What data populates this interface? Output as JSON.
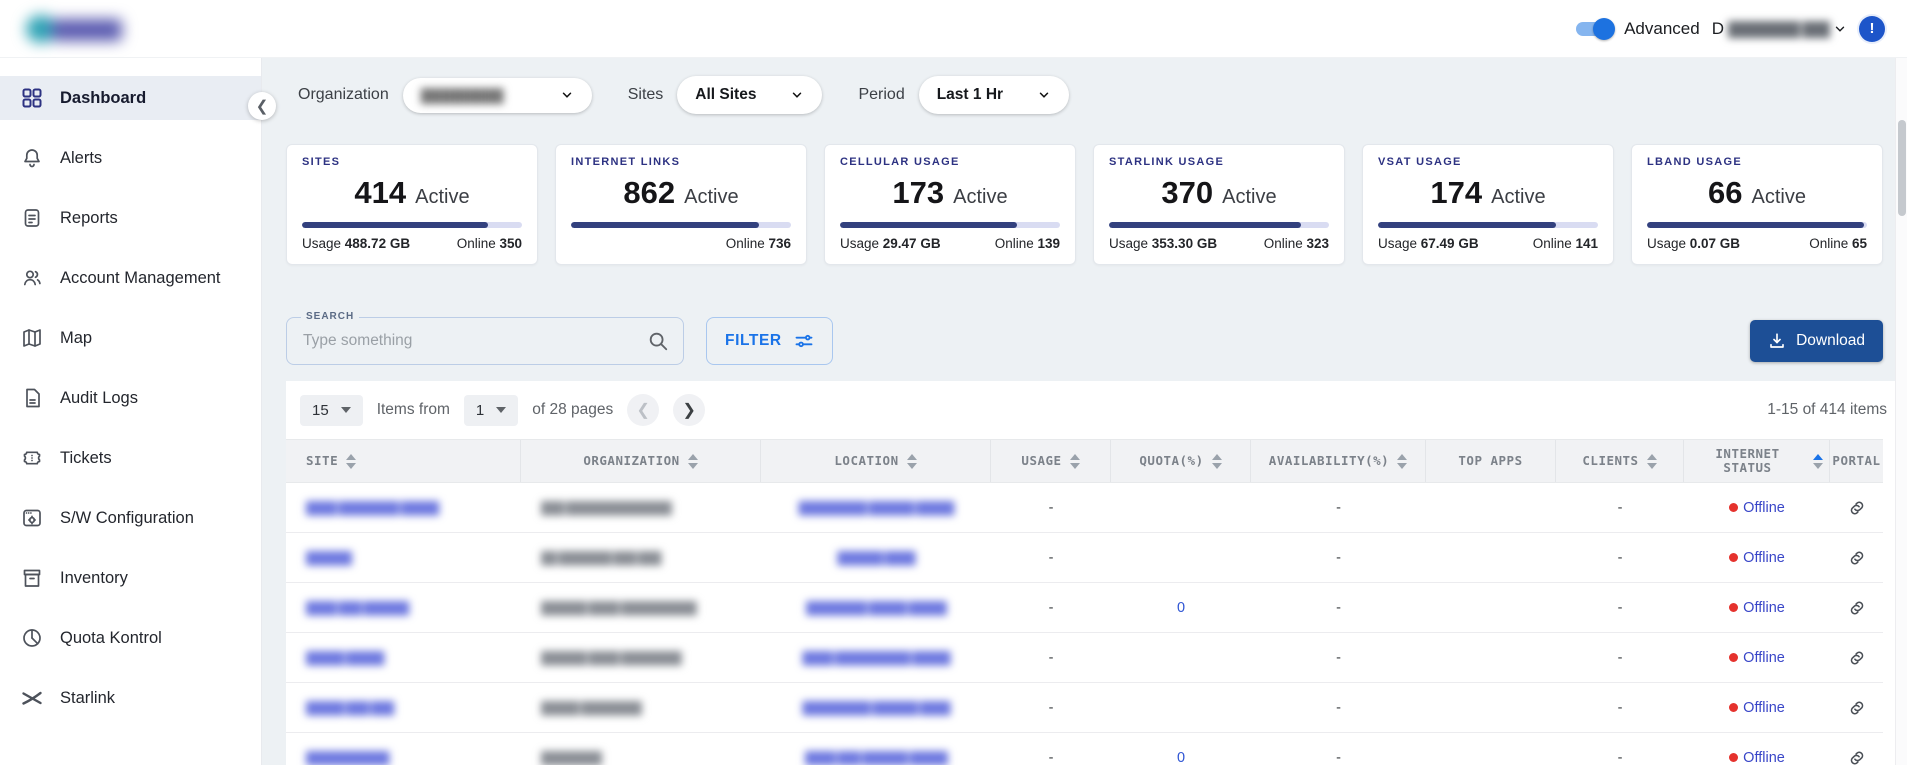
{
  "header": {
    "advanced_label": "Advanced",
    "user_prefix": "D",
    "user_name_redacted": "████████ ███",
    "alert_badge": "!"
  },
  "sidebar": {
    "items": [
      {
        "label": "Dashboard",
        "icon": "dashboard-grid-icon",
        "active": true
      },
      {
        "label": "Alerts",
        "icon": "bell-icon",
        "active": false
      },
      {
        "label": "Reports",
        "icon": "report-icon",
        "active": false
      },
      {
        "label": "Account Management",
        "icon": "users-icon",
        "active": false
      },
      {
        "label": "Map",
        "icon": "map-icon",
        "active": false
      },
      {
        "label": "Audit Logs",
        "icon": "document-icon",
        "active": false
      },
      {
        "label": "Tickets",
        "icon": "ticket-icon",
        "active": false
      },
      {
        "label": "S/W Configuration",
        "icon": "window-gear-icon",
        "active": false
      },
      {
        "label": "Inventory",
        "icon": "box-icon",
        "active": false
      },
      {
        "label": "Quota Kontrol",
        "icon": "pie-chart-icon",
        "active": false
      },
      {
        "label": "Starlink",
        "icon": "starlink-icon",
        "active": false
      }
    ]
  },
  "filters": {
    "organization_label": "Organization",
    "organization_value_redacted": "█████████",
    "sites_label": "Sites",
    "sites_value": "All Sites",
    "period_label": "Period",
    "period_value": "Last 1 Hr"
  },
  "cards": [
    {
      "label": "SITES",
      "value": "414",
      "active_label": "Active",
      "usage_label": "Usage",
      "usage": "488.72 GB",
      "online_label": "Online",
      "online": "350",
      "progress_pct": 84.5
    },
    {
      "label": "INTERNET LINKS",
      "value": "862",
      "active_label": "Active",
      "usage_label": "",
      "usage": "",
      "online_label": "Online",
      "online": "736",
      "progress_pct": 85.4
    },
    {
      "label": "CELLULAR USAGE",
      "value": "173",
      "active_label": "Active",
      "usage_label": "Usage",
      "usage": "29.47 GB",
      "online_label": "Online",
      "online": "139",
      "progress_pct": 80.3
    },
    {
      "label": "STARLINK USAGE",
      "value": "370",
      "active_label": "Active",
      "usage_label": "Usage",
      "usage": "353.30 GB",
      "online_label": "Online",
      "online": "323",
      "progress_pct": 87.3
    },
    {
      "label": "VSAT USAGE",
      "value": "174",
      "active_label": "Active",
      "usage_label": "Usage",
      "usage": "67.49 GB",
      "online_label": "Online",
      "online": "141",
      "progress_pct": 81.0
    },
    {
      "label": "LBAND USAGE",
      "value": "66",
      "active_label": "Active",
      "usage_label": "Usage",
      "usage": "0.07 GB",
      "online_label": "Online",
      "online": "65",
      "progress_pct": 98.5
    }
  ],
  "toolbar": {
    "search_label": "SEARCH",
    "search_placeholder": "Type something",
    "filter_label": "FILTER",
    "download_label": "Download"
  },
  "pagination": {
    "page_size": "15",
    "items_from_label": "Items from",
    "current_page": "1",
    "pages_label": "of 28 pages",
    "range_label": "1-15 of 414 items"
  },
  "table": {
    "columns": [
      {
        "label": "SITE",
        "sort": "both",
        "align": "left"
      },
      {
        "label": "ORGANIZATION",
        "sort": "both",
        "align": "center"
      },
      {
        "label": "LOCATION",
        "sort": "both",
        "align": "center"
      },
      {
        "label": "USAGE",
        "sort": "both",
        "align": "center"
      },
      {
        "label": "QUOTA(%)",
        "sort": "both",
        "align": "center"
      },
      {
        "label": "AVAILABILITY(%)",
        "sort": "both",
        "align": "center"
      },
      {
        "label": "TOP APPS",
        "sort": "none",
        "align": "center"
      },
      {
        "label": "CLIENTS",
        "sort": "both",
        "align": "center"
      },
      {
        "label": "INTERNET STATUS",
        "sort": "asc",
        "align": "center"
      },
      {
        "label": "PORTAL",
        "sort": "none",
        "align": "center"
      }
    ],
    "rows": [
      {
        "site_redacted": "████ ████████ █████",
        "organization_redacted": "███ ██████████████",
        "location_redacted": "█████████ ██████ █████",
        "usage": "-",
        "quota": "",
        "availability": "-",
        "top_apps": "",
        "clients": "-",
        "internet_status": "Offline",
        "portal_icon": "link-icon"
      },
      {
        "site_redacted": "██████",
        "organization_redacted": "██ ███████ ███ ███",
        "location_redacted": "██████ ████",
        "usage": "-",
        "quota": "",
        "availability": "-",
        "top_apps": "",
        "clients": "-",
        "internet_status": "Offline",
        "portal_icon": "link-icon"
      },
      {
        "site_redacted": "████ ███ ██████",
        "organization_redacted": "██████ ████ ██████████",
        "location_redacted": "████████ █████ █████",
        "usage": "-",
        "quota": "0",
        "availability": "-",
        "top_apps": "",
        "clients": "-",
        "internet_status": "Offline",
        "portal_icon": "link-icon"
      },
      {
        "site_redacted": "█████ █████",
        "organization_redacted": "██████ ████ ████████",
        "location_redacted": "████ ██████████ █████",
        "usage": "-",
        "quota": "",
        "availability": "-",
        "top_apps": "",
        "clients": "-",
        "internet_status": "Offline",
        "portal_icon": "link-icon"
      },
      {
        "site_redacted": "█████ ███ ███",
        "organization_redacted": "█████ ████████",
        "location_redacted": "█████████ ██████ ████",
        "usage": "-",
        "quota": "",
        "availability": "-",
        "top_apps": "",
        "clients": "-",
        "internet_status": "Offline",
        "portal_icon": "link-icon"
      },
      {
        "site_redacted": "███████████",
        "organization_redacted": "████████",
        "location_redacted": "████ ███ ██████ █████",
        "usage": "-",
        "quota": "0",
        "availability": "-",
        "top_apps": "",
        "clients": "-",
        "internet_status": "Offline",
        "portal_icon": "link-icon"
      }
    ]
  }
}
